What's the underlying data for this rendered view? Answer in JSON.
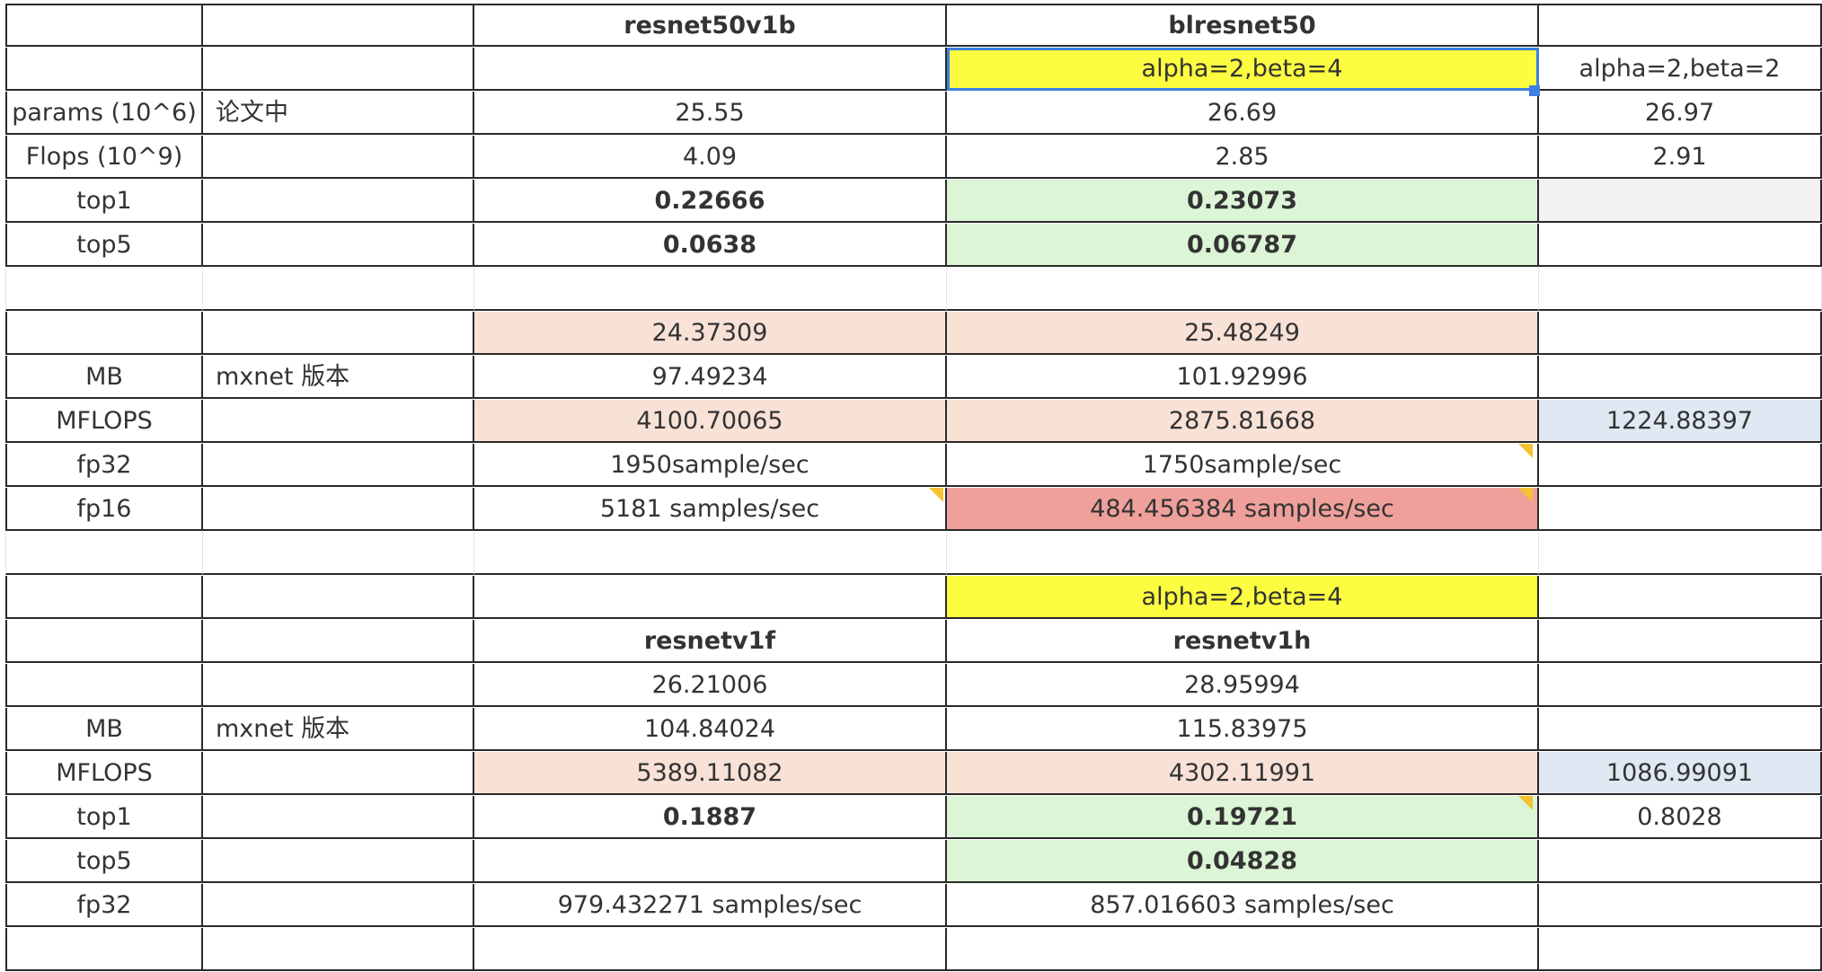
{
  "table": {
    "rows": [
      [
        "",
        "",
        "resnet50v1b",
        "blresnet50",
        ""
      ],
      [
        "",
        "",
        "",
        "alpha=2,beta=4",
        "alpha=2,beta=2"
      ],
      [
        "params (10^6)",
        "论文中",
        "25.55",
        "26.69",
        "26.97"
      ],
      [
        "Flops (10^9)",
        "",
        "4.09",
        "2.85",
        "2.91"
      ],
      [
        "top1",
        "",
        "0.22666",
        "0.23073",
        ""
      ],
      [
        "top5",
        "",
        "0.0638",
        "0.06787",
        ""
      ],
      [
        "",
        "",
        "",
        "",
        ""
      ],
      [
        "",
        "",
        "24.37309",
        "25.48249",
        ""
      ],
      [
        "MB",
        "mxnet 版本",
        "97.49234",
        "101.92996",
        ""
      ],
      [
        "MFLOPS",
        "",
        "4100.70065",
        "2875.81668",
        "1224.88397"
      ],
      [
        "fp32",
        "",
        "1950sample/sec",
        "1750sample/sec",
        ""
      ],
      [
        "fp16",
        "",
        "5181 samples/sec",
        "484.456384 samples/sec",
        ""
      ],
      [
        "",
        "",
        "",
        "",
        ""
      ],
      [
        "",
        "",
        "",
        "alpha=2,beta=4",
        ""
      ],
      [
        "",
        "",
        "resnetv1f",
        "resnetv1h",
        ""
      ],
      [
        "",
        "",
        "26.21006",
        "28.95994",
        ""
      ],
      [
        "MB",
        "mxnet 版本",
        "104.84024",
        "115.83975",
        ""
      ],
      [
        "MFLOPS",
        "",
        "5389.11082",
        "4302.11991",
        "1086.99091"
      ],
      [
        "top1",
        "",
        "0.1887",
        "0.19721",
        "0.8028"
      ],
      [
        "top5",
        "",
        "",
        "0.04828",
        ""
      ],
      [
        "fp32",
        "",
        "979.432271 samples/sec",
        "857.016603 samples/sec",
        ""
      ],
      [
        "",
        "",
        "",
        "",
        ""
      ]
    ]
  },
  "selection": {
    "cell": "alpha=2,beta=4"
  },
  "colors": {
    "green_fill": "#dcf5d6",
    "peach_fill": "#f8e2d6",
    "blue_fill": "#dfe8f3",
    "yellow_fill": "#fcfc40",
    "red_fill": "#f0a09b",
    "grey_fill": "#f2f2f2",
    "selection_border": "#3d7fe0",
    "comment_marker": "#f5c232"
  }
}
